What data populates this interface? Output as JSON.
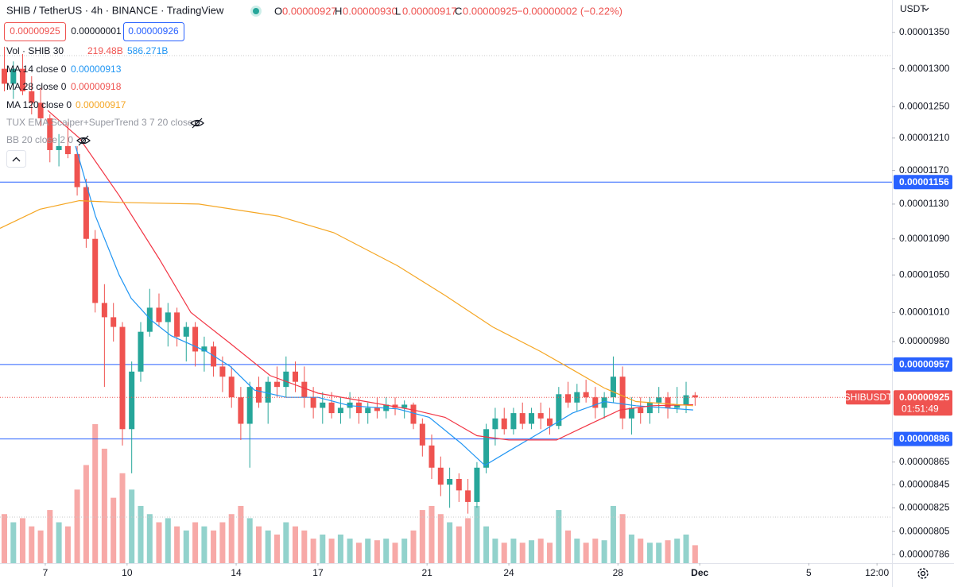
{
  "chart_data": {
    "type": "candlestick",
    "header": {
      "symbol": "SHIB / TetherUS · 4h · BINANCE · TradingView",
      "ohlc": [
        "O",
        "0.00000927",
        "H",
        "0.00000930",
        "L",
        "0.00000917",
        "C",
        "0.00000925",
        "−0.00000002 (−0.22%)"
      ],
      "buttons": [
        "0.00000925",
        "0.00000001",
        "0.00000926"
      ],
      "currency": "USDT"
    },
    "volume_legend": {
      "name": "Vol · SHIB 30",
      "values": [
        "219.48B",
        "586.271B"
      ]
    },
    "hidden_indicators": [
      "TUX EMA Scalper+SuperTrend 3 7 20 close",
      "BB 20 close 2 0"
    ],
    "log_scale": true,
    "grid": false,
    "up_color": "#26a69a",
    "down_color": "#ef5350",
    "xlim": [
      5.34,
      38.05
    ],
    "xticks": [
      7,
      10,
      14,
      17,
      21,
      24,
      28,
      {
        "value": 31,
        "label": "Dec"
      },
      {
        "value": 35,
        "label": "5"
      },
      {
        "value": 37.5,
        "label": "12:00"
      }
    ],
    "ylim": [
      7.79e-06,
      1.396e-05
    ],
    "yticks": [
      {
        "value": 1.35e-05,
        "label": "0.00001350"
      },
      {
        "value": 1.3e-05,
        "label": "0.00001300"
      },
      {
        "value": 1.25e-05,
        "label": "0.00001250"
      },
      {
        "value": 1.21e-05,
        "label": "0.00001210"
      },
      {
        "value": 1.17e-05,
        "label": "0.00001170"
      },
      {
        "value": 1.13e-05,
        "label": "0.00001130"
      },
      {
        "value": 1.09e-05,
        "label": "0.00001090"
      },
      {
        "value": 1.05e-05,
        "label": "0.00001050"
      },
      {
        "value": 1.01e-05,
        "label": "0.00001010"
      },
      {
        "value": 9.8e-06,
        "label": "0.00000980"
      },
      8.65e-06,
      8.45e-06,
      8.25e-06,
      8.05e-06,
      7.86e-06
    ],
    "x": [
      5.5,
      5.83,
      6.17,
      6.5,
      6.83,
      7.17,
      7.5,
      7.83,
      8.17,
      8.5,
      8.83,
      9.17,
      9.5,
      9.83,
      10.17,
      10.5,
      10.83,
      11.17,
      11.5,
      11.83,
      12.17,
      12.5,
      12.83,
      13.17,
      13.5,
      13.83,
      14.17,
      14.5,
      14.83,
      15.17,
      15.5,
      15.83,
      16.17,
      16.5,
      16.83,
      17.17,
      17.5,
      17.83,
      18.17,
      18.5,
      18.83,
      19.17,
      19.5,
      19.83,
      20.17,
      20.5,
      20.83,
      21.17,
      21.5,
      21.83,
      22.17,
      22.5,
      22.83,
      23.17,
      23.5,
      23.83,
      24.17,
      24.5,
      24.83,
      25.17,
      25.5,
      25.83,
      26.17,
      26.5,
      26.83,
      27.17,
      27.5,
      27.83,
      28.17,
      28.5,
      28.83,
      29.17,
      29.5,
      29.83,
      30.17,
      30.5,
      30.83
    ],
    "open": [
      1.3e-05,
      1.28e-05,
      1.3e-05,
      1.27e-05,
      1.255e-05,
      1.235e-05,
      1.195e-05,
      1.2e-05,
      1.19e-05,
      1.15e-05,
      1.09e-05,
      1.02e-05,
      1.005e-05,
      9.95e-06,
      8.95e-06,
      9.5e-06,
      9.9e-06,
      1.015e-05,
      1e-05,
      1.01e-05,
      9.85e-06,
      9.95e-06,
      9.7e-06,
      9.75e-06,
      9.55e-06,
      9.45e-06,
      9.25e-06,
      9e-06,
      9.35e-06,
      9.2e-06,
      9.4e-06,
      9.35e-06,
      9.5e-06,
      9.4e-06,
      9.25e-06,
      9.15e-06,
      9.2e-06,
      9.1e-06,
      9.15e-06,
      9.2e-06,
      9.1e-06,
      9.15e-06,
      9.12e-06,
      9.18e-06,
      9.15e-06,
      9.18e-06,
      9e-06,
      8.8e-06,
      8.6e-06,
      8.45e-06,
      8.5e-06,
      8.4e-06,
      8.3e-06,
      8.6e-06,
      8.95e-06,
      9.05e-06,
      8.95e-06,
      9.1e-06,
      9e-06,
      9.1e-06,
      9.05e-06,
      8.98e-06,
      9.28e-06,
      9.2e-06,
      9.3e-06,
      9.25e-06,
      9.15e-06,
      9.25e-06,
      9.45e-06,
      9.05e-06,
      9.15e-06,
      9.1e-06,
      9.2e-06,
      9.25e-06,
      9.15e-06,
      9.18e-06,
      9.27e-06
    ],
    "high": [
      1.33e-05,
      1.31e-05,
      1.32e-05,
      1.29e-05,
      1.275e-05,
      1.24e-05,
      1.215e-05,
      1.23e-05,
      1.2e-05,
      1.16e-05,
      1.1e-05,
      1.04e-05,
      1.02e-05,
      1e-05,
      9.6e-06,
      1e-05,
      1.035e-05,
      1.03e-05,
      1.02e-05,
      1.015e-05,
      1e-05,
      1e-05,
      9.85e-06,
      9.8e-06,
      9.65e-06,
      9.55e-06,
      9.35e-06,
      9.4e-06,
      9.45e-06,
      9.45e-06,
      9.55e-06,
      9.65e-06,
      9.6e-06,
      9.55e-06,
      9.35e-06,
      9.3e-06,
      9.3e-06,
      9.25e-06,
      9.3e-06,
      9.25e-06,
      9.2e-06,
      9.25e-06,
      9.25e-06,
      9.25e-06,
      9.22e-06,
      9.2e-06,
      9.05e-06,
      8.9e-06,
      8.7e-06,
      8.6e-06,
      8.55e-06,
      8.5e-06,
      8.65e-06,
      9e-06,
      9.15e-06,
      9.15e-06,
      9.15e-06,
      9.2e-06,
      9.15e-06,
      9.2e-06,
      9.15e-06,
      9.35e-06,
      9.4e-06,
      9.38e-06,
      9.42e-06,
      9.35e-06,
      9.3e-06,
      9.65e-06,
      9.55e-06,
      9.25e-06,
      9.25e-06,
      9.25e-06,
      9.35e-06,
      9.3e-06,
      9.35e-06,
      9.4e-06,
      9.3e-06
    ],
    "low": [
      1.27e-05,
      1.26e-05,
      1.265e-05,
      1.24e-05,
      1.225e-05,
      1.18e-05,
      1.175e-05,
      1.185e-05,
      1.14e-05,
      1.08e-05,
      1.01e-05,
      9.35e-06,
      9.8e-06,
      8.8e-06,
      8.55e-06,
      9.4e-06,
      9.85e-06,
      9.95e-06,
      9.75e-06,
      9.75e-06,
      9.6e-06,
      9.55e-06,
      9.5e-06,
      9.45e-06,
      9.3e-06,
      9.15e-06,
      8.85e-06,
      8.6e-06,
      9.15e-06,
      9e-06,
      9.25e-06,
      9.25e-06,
      9.3e-06,
      9.15e-06,
      9.05e-06,
      9e-06,
      9.05e-06,
      9e-06,
      9.05e-06,
      9e-06,
      9e-06,
      9.05e-06,
      9.05e-06,
      9.08e-06,
      9.05e-06,
      8.95e-06,
      8.7e-06,
      8.5e-06,
      8.35e-06,
      8.25e-06,
      8.3e-06,
      8.2e-06,
      8.25e-06,
      8.55e-06,
      8.8e-06,
      8.9e-06,
      8.9e-06,
      8.95e-06,
      8.95e-06,
      8.95e-06,
      8.9e-06,
      8.95e-06,
      9.15e-06,
      9.12e-06,
      9.2e-06,
      9.05e-06,
      9.05e-06,
      9.2e-06,
      8.95e-06,
      8.9e-06,
      9e-06,
      9e-06,
      9.1e-06,
      9.05e-06,
      9.1e-06,
      9.1e-06,
      9.17e-06
    ],
    "close": [
      1.28e-05,
      1.3e-05,
      1.27e-05,
      1.255e-05,
      1.235e-05,
      1.195e-05,
      1.2e-05,
      1.19e-05,
      1.15e-05,
      1.09e-05,
      1.02e-05,
      1.005e-05,
      9.95e-06,
      8.95e-06,
      9.5e-06,
      9.9e-06,
      1.015e-05,
      1e-05,
      1.01e-05,
      9.85e-06,
      9.95e-06,
      9.7e-06,
      9.75e-06,
      9.55e-06,
      9.45e-06,
      9.25e-06,
      9e-06,
      9.35e-06,
      9.2e-06,
      9.4e-06,
      9.35e-06,
      9.5e-06,
      9.4e-06,
      9.25e-06,
      9.15e-06,
      9.2e-06,
      9.1e-06,
      9.15e-06,
      9.2e-06,
      9.1e-06,
      9.15e-06,
      9.12e-06,
      9.18e-06,
      9.15e-06,
      9.18e-06,
      9e-06,
      8.8e-06,
      8.6e-06,
      8.45e-06,
      8.5e-06,
      8.4e-06,
      8.3e-06,
      8.6e-06,
      8.95e-06,
      9.05e-06,
      8.95e-06,
      9.1e-06,
      9e-06,
      9.1e-06,
      9.05e-06,
      8.98e-06,
      9.28e-06,
      9.2e-06,
      9.3e-06,
      9.25e-06,
      9.15e-06,
      9.25e-06,
      9.45e-06,
      9.05e-06,
      9.15e-06,
      9.1e-06,
      9.2e-06,
      9.25e-06,
      9.15e-06,
      9.18e-06,
      9.27e-06,
      9.25e-06
    ],
    "volume": [
      600,
      500,
      550,
      450,
      400,
      650,
      500,
      450,
      900,
      1200,
      1700,
      1400,
      800,
      1100,
      900,
      700,
      600,
      500,
      550,
      450,
      400,
      500,
      450,
      400,
      500,
      600,
      700,
      550,
      450,
      400,
      350,
      500,
      450,
      400,
      300,
      350,
      300,
      350,
      300,
      250,
      300,
      280,
      300,
      250,
      300,
      400,
      650,
      700,
      600,
      500,
      450,
      550,
      700,
      450,
      300,
      250,
      300,
      250,
      280,
      300,
      250,
      650,
      400,
      300,
      250,
      300,
      280,
      700,
      600,
      350,
      300,
      250,
      250,
      280,
      300,
      350,
      219.48
    ],
    "series": [
      {
        "name": "MA 14 close 0",
        "color": "#2196f3",
        "legend_value": 9.13e-06,
        "x": [
          8.11,
          8.84,
          9.71,
          10.15,
          10.88,
          11.61,
          12.92,
          13.79,
          14.67,
          15.83,
          17,
          18.17,
          19.92,
          21.08,
          22.25,
          23.12,
          24,
          25.16,
          26.33,
          27.5,
          28.66,
          30.76
        ],
        "values": [
          1.2e-05,
          1.116e-05,
          1.05e-05,
          1.025e-05,
          1.002e-05,
          9.86e-06,
          9.7e-06,
          9.55e-06,
          9.32e-06,
          9.25e-06,
          9.25e-06,
          9.17e-06,
          9.14e-06,
          9.06e-06,
          8.82e-06,
          8.62e-06,
          8.75e-06,
          8.92e-06,
          9.1e-06,
          9.21e-06,
          9.17e-06,
          9.13e-06
        ]
      },
      {
        "name": "MA 28 close 0",
        "color": "#f23645",
        "legend_value": 9.18e-06,
        "x": [
          7.09,
          8.25,
          9.71,
          11.17,
          12.34,
          13.79,
          15.25,
          17,
          18.75,
          20.5,
          21.66,
          22.83,
          24,
          25.75,
          26.91,
          28.08,
          29.24,
          30.76
        ],
        "values": [
          1.245e-05,
          1.21e-05,
          1.14e-05,
          1.068e-05,
          1.01e-05,
          9.78e-06,
          9.46e-06,
          9.29e-06,
          9.21e-06,
          9.13e-06,
          9.06e-06,
          8.89e-06,
          8.85e-06,
          8.85e-06,
          8.99e-06,
          9.13e-06,
          9.17e-06,
          9.18e-06
        ]
      },
      {
        "name": "MA 120 close 0",
        "color": "#f5a623",
        "legend_value": 9.17e-06,
        "x": [
          5.34,
          6.8,
          8.25,
          9.71,
          12.63,
          15.54,
          17.58,
          19.92,
          21.66,
          23.41,
          25.16,
          26.33,
          27.5,
          28.66,
          30.76
        ],
        "values": [
          1.102e-05,
          1.124e-05,
          1.134e-05,
          1.132e-05,
          1.13e-05,
          1.116e-05,
          1.097e-05,
          1.06e-05,
          1.028e-05,
          9.95e-06,
          9.7e-06,
          9.52e-06,
          9.34e-06,
          9.21e-06,
          9.17e-06
        ]
      }
    ],
    "levels": [
      1.156e-05,
      9.57e-06,
      8.86e-06
    ],
    "level_color": "#2962ff",
    "price_tag": {
      "symbol": "SHIBUSDT",
      "countdown": "01:51:49"
    }
  }
}
